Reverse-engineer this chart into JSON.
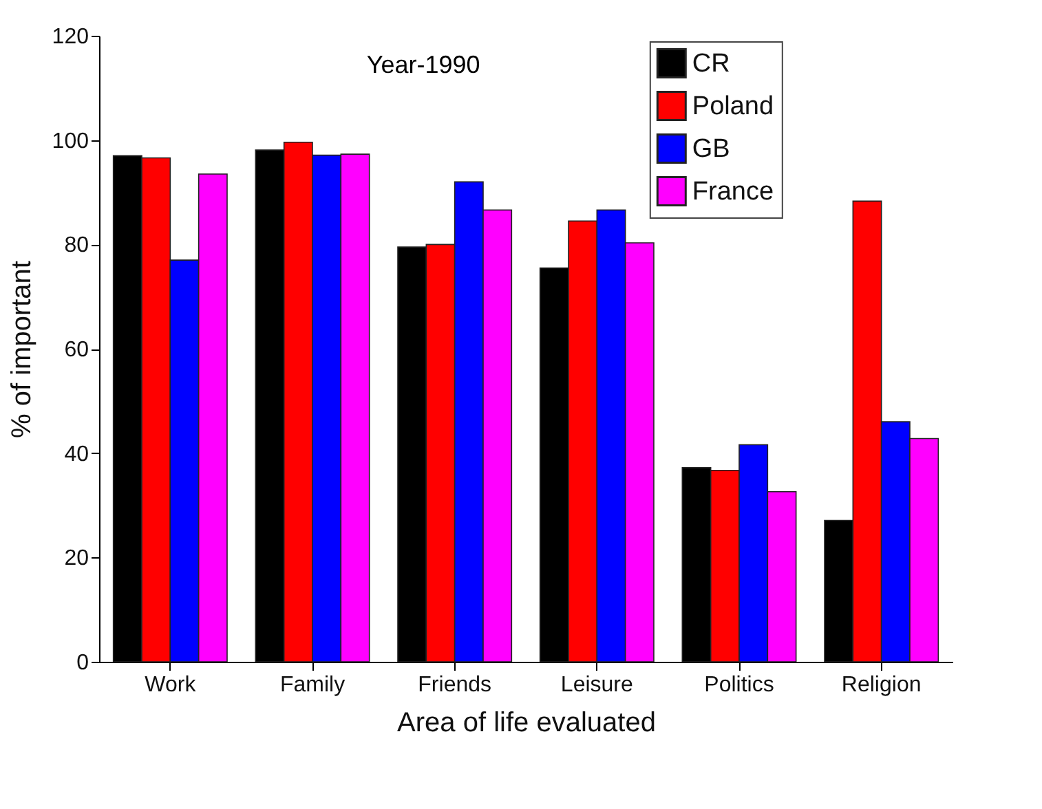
{
  "chart_data": {
    "type": "bar",
    "xlabel": "Area of life evaluated",
    "ylabel": "% of important",
    "annotations": [
      "Year-1990"
    ],
    "categories": [
      "Work",
      "Family",
      "Friends",
      "Leisure",
      "Politics",
      "Religion"
    ],
    "series": [
      {
        "name": "CR",
        "color": "#000000",
        "values": [
          97.0,
          98.1,
          79.5,
          75.5,
          37.2,
          27.1
        ]
      },
      {
        "name": "Poland",
        "color": "#ff0000",
        "values": [
          96.6,
          99.6,
          80.0,
          84.5,
          36.7,
          88.3
        ]
      },
      {
        "name": "GB",
        "color": "#0000ff",
        "values": [
          77.0,
          97.1,
          92.0,
          86.6,
          41.6,
          46.0
        ]
      },
      {
        "name": "France",
        "color": "#ff00ff",
        "values": [
          93.5,
          97.3,
          86.6,
          80.3,
          32.6,
          42.8
        ]
      }
    ],
    "ylim": [
      0,
      120
    ],
    "yticks": [
      0,
      20,
      40,
      60,
      80,
      100,
      120
    ],
    "grid": false,
    "legend": "top right"
  }
}
